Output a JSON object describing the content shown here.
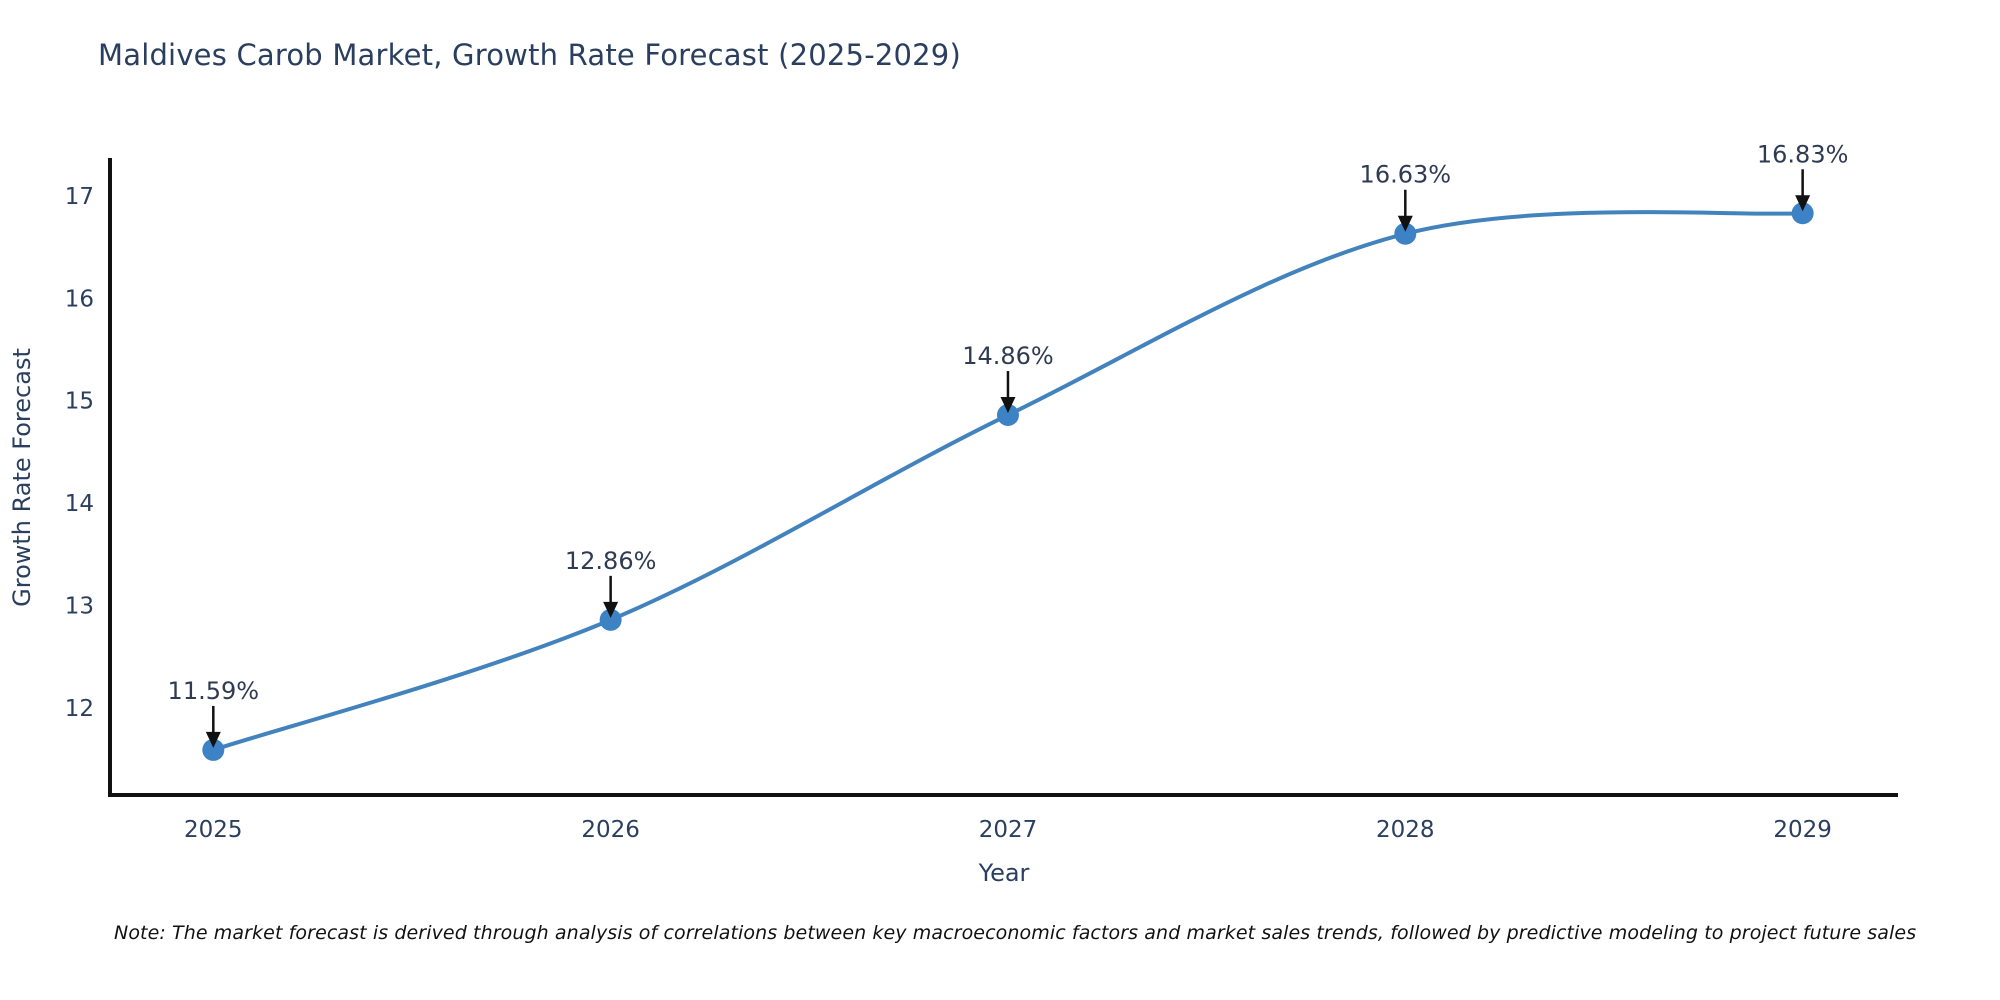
{
  "header": {
    "title": "Maldives Carob Market, Growth Rate Forecast (2025-2029)"
  },
  "chart_data": {
    "type": "line",
    "title": "Maldives Carob Market, Growth Rate Forecast (2025-2029)",
    "x": [
      2025,
      2026,
      2027,
      2028,
      2029
    ],
    "series": [
      {
        "name": "Growth Rate Forecast",
        "values": [
          11.59,
          12.86,
          14.86,
          16.63,
          16.83
        ]
      }
    ],
    "point_labels": [
      "11.59%",
      "12.86%",
      "14.86%",
      "16.63%",
      "16.83%"
    ],
    "xlabel": "Year",
    "ylabel": "Growth Rate Forecast",
    "xticks": [
      "2025",
      "2026",
      "2027",
      "2028",
      "2029"
    ],
    "yticks": [
      12,
      13,
      14,
      15,
      16,
      17
    ],
    "xlim": [
      2024.74,
      2029.24
    ],
    "ylim": [
      11.15,
      17.35
    ],
    "grid": false,
    "legend_position": "none",
    "line_shape": "spline",
    "colors": {
      "line": "#4383bd",
      "marker": "#3d82c4",
      "axis": "#111111",
      "tick_text": "#2a3f5f",
      "axis_title_text": "#2a3f5f",
      "annotation_text": "#2f3b52",
      "arrow": "#111111",
      "background": "#ffffff"
    }
  },
  "footnote": {
    "text": "Note: The market forecast is derived through analysis of correlations between key macroeconomic factors and market sales trends, followed by predictive modeling to project future sales"
  }
}
